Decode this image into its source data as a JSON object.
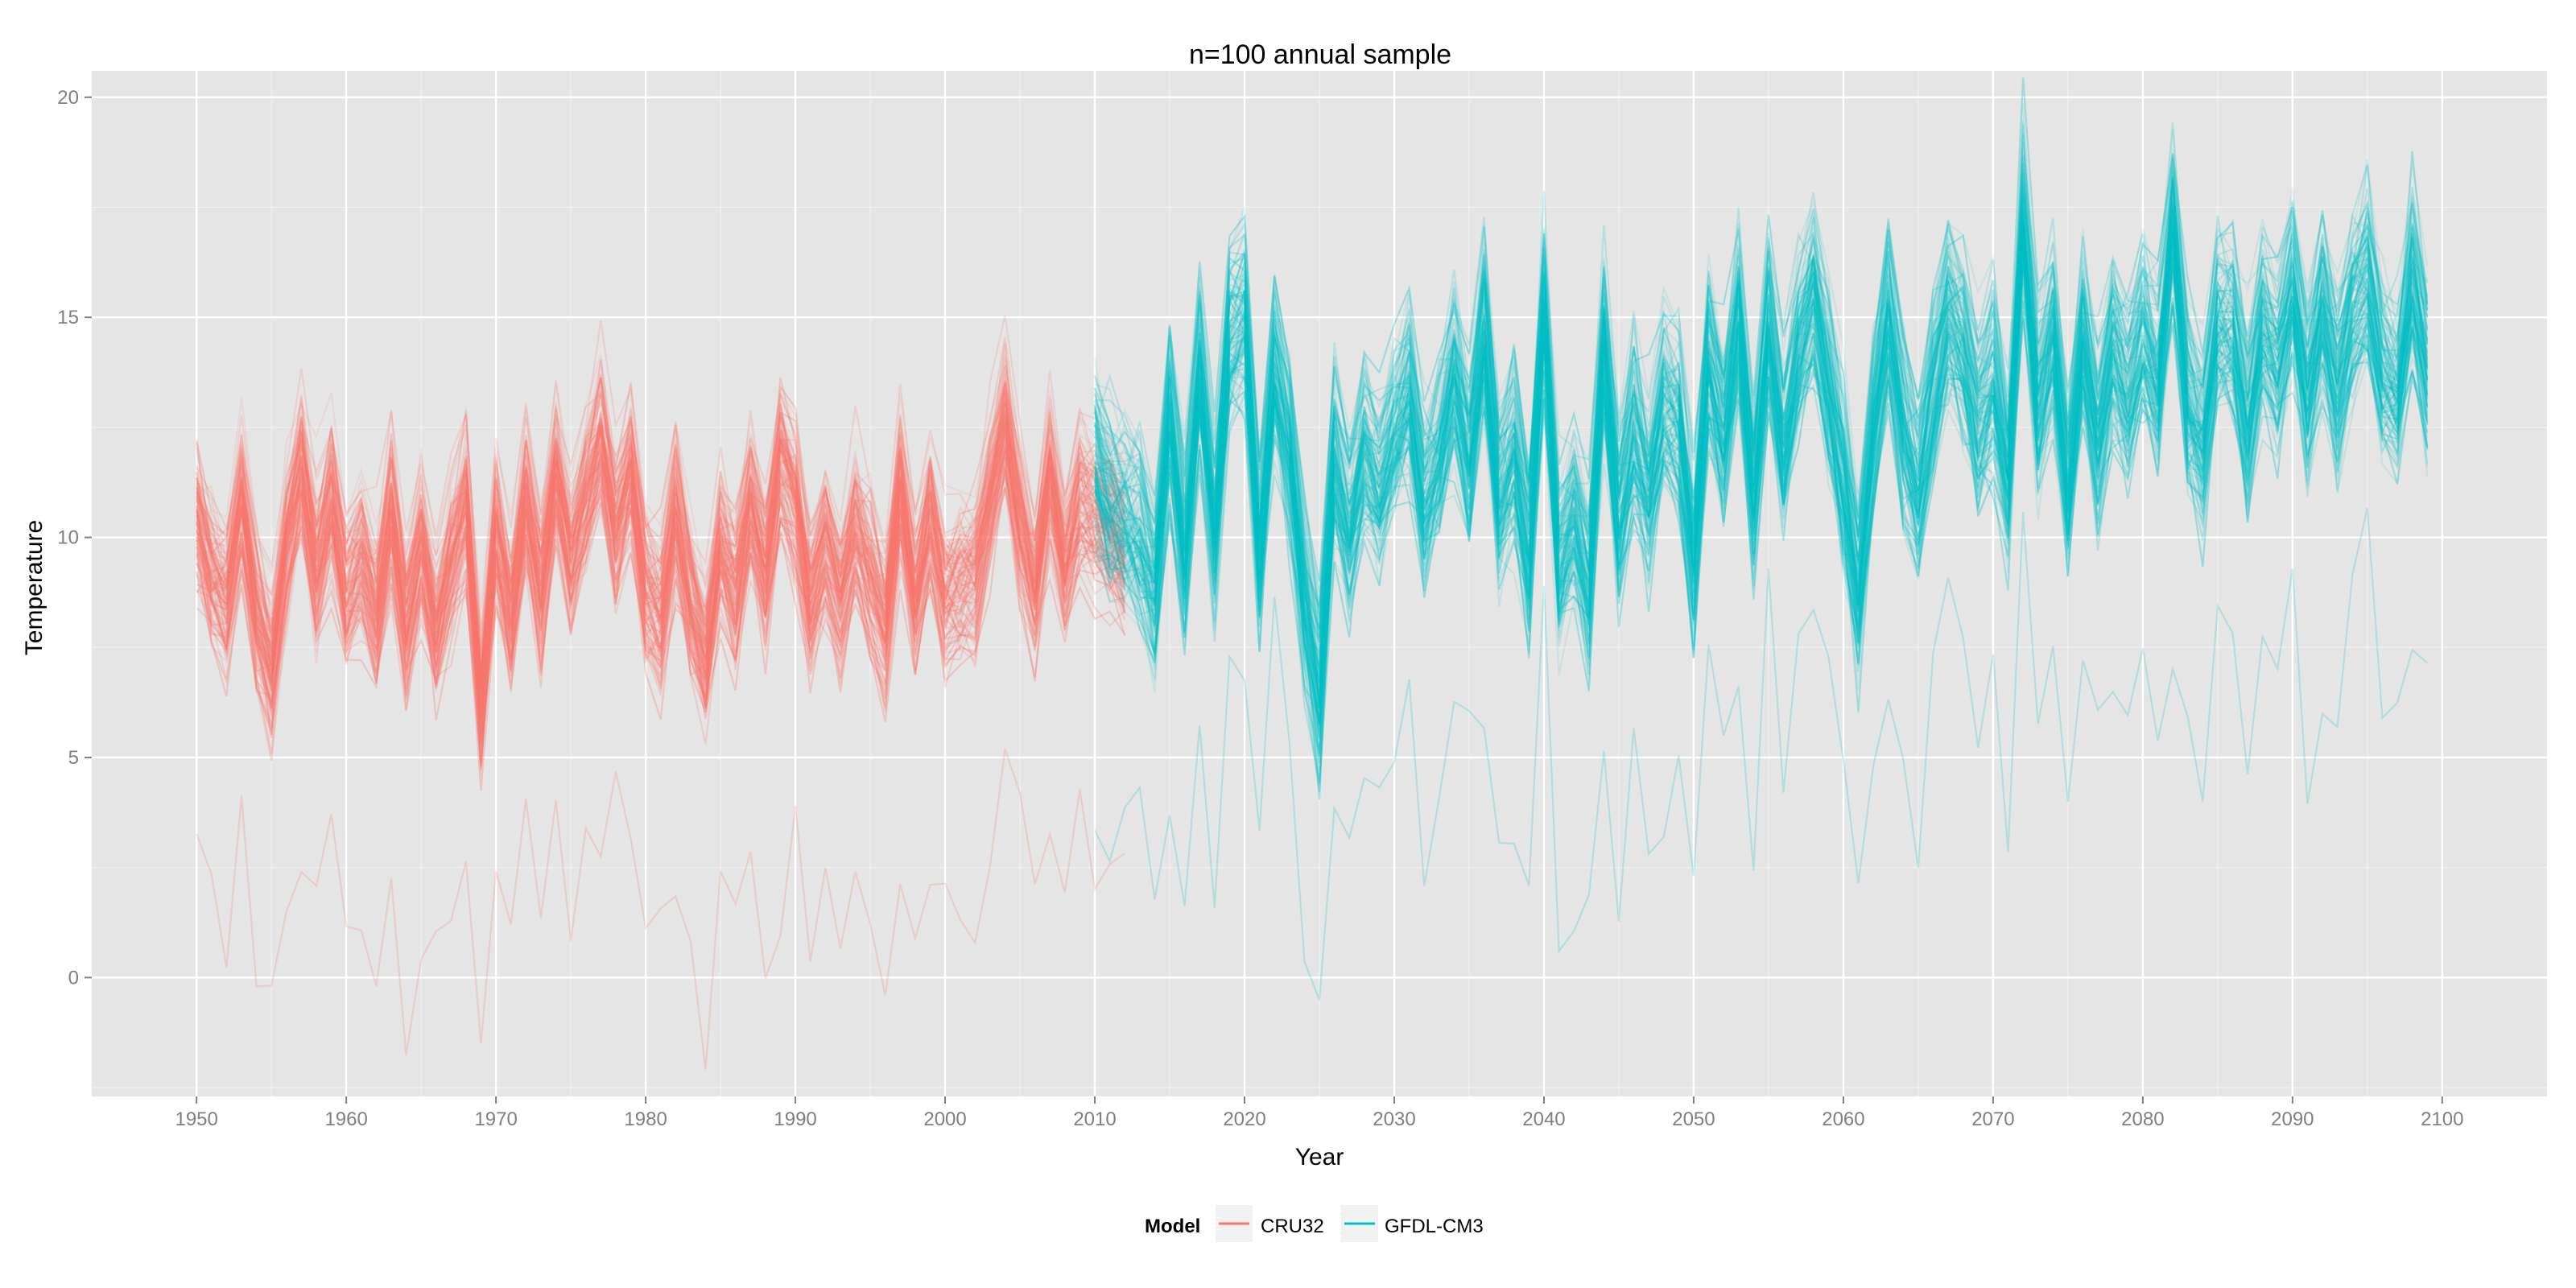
{
  "chart_data": {
    "type": "line",
    "title": "n=100 annual sample",
    "xlabel": "Year",
    "ylabel": "Temperature",
    "xlim": [
      1943,
      2107
    ],
    "ylim": [
      -2.7,
      20.6
    ],
    "x_ticks": [
      1950,
      1960,
      1970,
      1980,
      1990,
      2000,
      2010,
      2020,
      2030,
      2040,
      2050,
      2060,
      2070,
      2080,
      2090,
      2100
    ],
    "x_tick_labels": [
      "1950",
      "1960",
      "1970",
      "1980",
      "1990",
      "2000",
      "2010",
      "2020",
      "2030",
      "2040",
      "2050",
      "2060",
      "2070",
      "2080",
      "2090",
      "2100"
    ],
    "y_ticks": [
      0,
      5,
      10,
      15,
      20
    ],
    "y_tick_labels": [
      "0",
      "5",
      "10",
      "15",
      "20"
    ],
    "grid": true,
    "n_samples": 100,
    "legend": {
      "title": "Model",
      "position": "bottom",
      "entries": [
        {
          "label": "CRU32",
          "color": "#F8766D"
        },
        {
          "label": "GFDL-CM3",
          "color": "#00BFC4"
        }
      ]
    },
    "series": [
      {
        "name": "CRU32",
        "color": "#F8766D",
        "x_start": 1950,
        "mean": [
          10.5,
          9.2,
          8.6,
          10.8,
          8.4,
          7.0,
          9.8,
          11.6,
          9.3,
          10.9,
          8.8,
          9.5,
          8.3,
          10.6,
          8.0,
          9.9,
          7.8,
          9.5,
          10.8,
          6.2,
          10.1,
          8.2,
          11.0,
          8.8,
          11.5,
          9.6,
          11.0,
          12.3,
          10.2,
          11.6,
          8.9,
          8.2,
          10.6,
          8.6,
          7.2,
          9.8,
          8.8,
          10.9,
          9.2,
          11.8,
          10.9,
          8.5,
          9.9,
          8.6,
          10.2,
          9.1,
          8.0,
          11.2,
          8.6,
          10.5,
          8.7,
          9.0,
          9.2,
          10.9,
          12.6,
          10.4,
          8.9,
          11.5,
          9.3,
          10.8,
          10.5,
          10.2,
          9.6
        ],
        "spread": 1.3,
        "outlier_offset": -8.0
      },
      {
        "name": "GFDL-CM3",
        "color": "#00BFC4",
        "x_start": 2010,
        "mean": [
          11.8,
          10.9,
          10.5,
          10.1,
          8.8,
          12.8,
          9.7,
          13.9,
          10.2,
          14.6,
          15.2,
          9.7,
          13.9,
          12.1,
          8.7,
          6.6,
          11.8,
          10.3,
          12.0,
          11.2,
          12.4,
          13.4,
          10.7,
          11.9,
          13.8,
          11.8,
          14.8,
          10.9,
          12.0,
          9.7,
          15.2,
          9.4,
          10.6,
          9.0,
          14.4,
          10.4,
          12.5,
          11.0,
          13.2,
          12.6,
          9.6,
          14.1,
          12.4,
          15.0,
          11.0,
          14.8,
          12.1,
          14.3,
          15.6,
          13.6,
          11.3,
          8.9,
          12.5,
          15.1,
          12.6,
          11.1,
          13.3,
          15.1,
          14.4,
          12.6,
          13.7,
          11.4,
          17.3,
          13.1,
          14.6,
          11.1,
          14.6,
          12.3,
          14.4,
          13.3,
          14.7,
          13.6,
          17.2,
          13.1,
          12.1,
          14.9,
          14.8,
          12.6,
          14.9,
          14.0,
          15.7,
          13.4,
          15.3,
          13.4,
          15.2,
          15.9,
          13.8,
          13.2,
          15.9,
          13.8
        ],
        "spread": 1.6,
        "outlier_offset": -7.5
      }
    ]
  }
}
